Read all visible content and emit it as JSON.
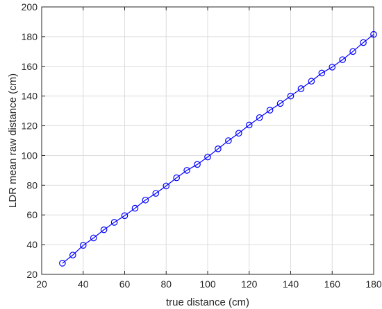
{
  "chart_data": {
    "type": "line",
    "xlabel": "true distance (cm)",
    "ylabel": "LDR mean raw distance (cm)",
    "xlim": [
      20,
      180
    ],
    "ylim": [
      20,
      200
    ],
    "x_ticks": [
      20,
      40,
      60,
      80,
      100,
      120,
      140,
      160,
      180
    ],
    "y_ticks": [
      20,
      40,
      60,
      80,
      100,
      120,
      140,
      160,
      180,
      200
    ],
    "grid": true,
    "marker": "circle",
    "series": [
      {
        "color": "#0000ff",
        "x": [
          30,
          35,
          40,
          45,
          50,
          55,
          60,
          65,
          70,
          75,
          80,
          85,
          90,
          95,
          100,
          105,
          110,
          115,
          120,
          125,
          130,
          135,
          140,
          145,
          150,
          155,
          160,
          165,
          170,
          175,
          180
        ],
        "y": [
          27.5,
          33,
          39.5,
          44.5,
          50,
          55,
          59.5,
          64.5,
          70,
          74.5,
          79.5,
          85,
          90,
          94,
          99,
          104.5,
          110,
          115,
          120.5,
          125.5,
          130.5,
          135,
          140,
          145,
          150,
          155.5,
          159.5,
          164.5,
          170,
          176,
          181.5
        ]
      }
    ]
  }
}
